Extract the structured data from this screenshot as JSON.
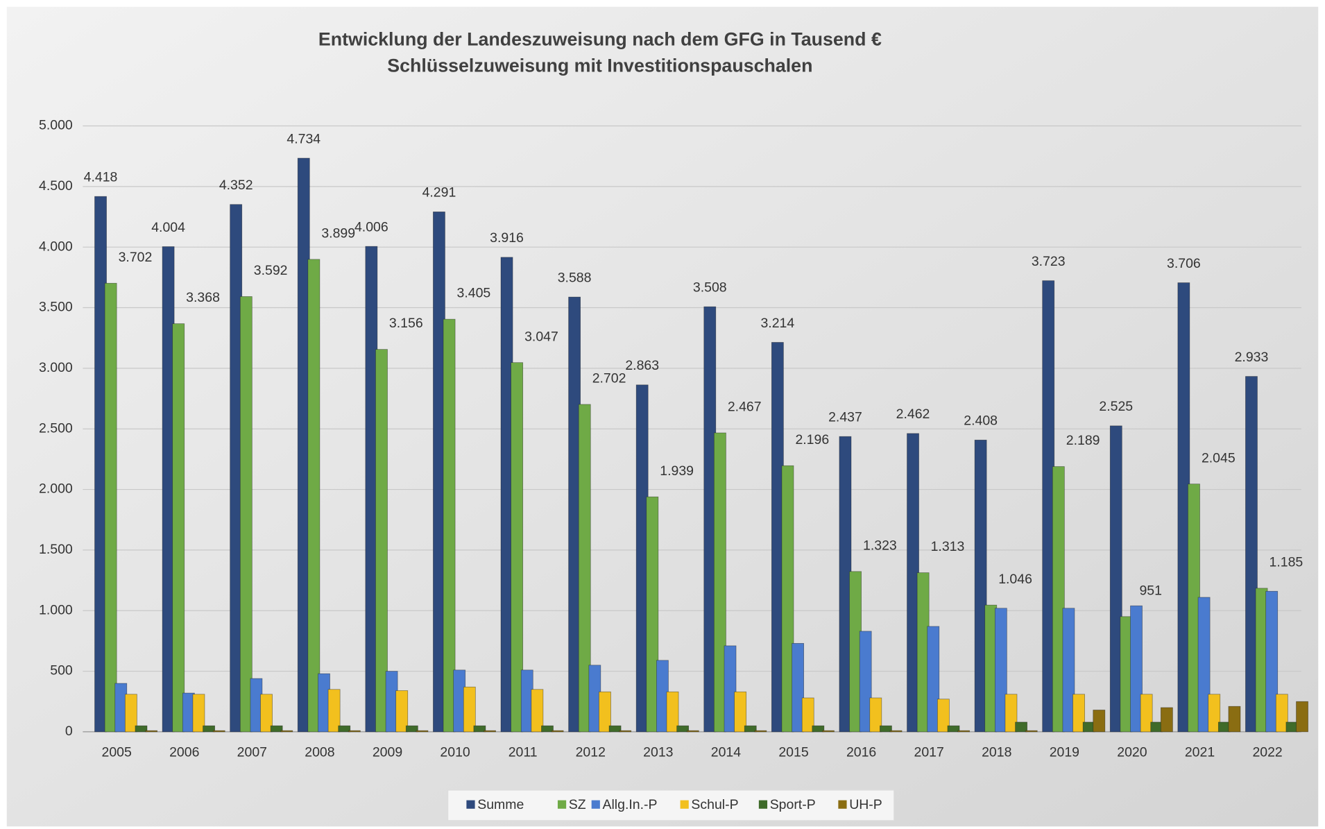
{
  "chart_data": {
    "type": "bar",
    "title": "Entwicklung der Landeszuweisung nach dem GFG in Tausend €",
    "subtitle": "Schlüsselzuweisung mit Investitionspauschalen",
    "categories": [
      "2005",
      "2006",
      "2007",
      "2008",
      "2009",
      "2010",
      "2011",
      "2012",
      "2013",
      "2014",
      "2015",
      "2016",
      "2017",
      "2018",
      "2019",
      "2020",
      "2021",
      "2022"
    ],
    "series": [
      {
        "name": "Summe",
        "color": "#2e4a7d",
        "values": [
          4418,
          4004,
          4352,
          4734,
          4006,
          4291,
          3916,
          3588,
          2863,
          3508,
          3214,
          2437,
          2462,
          2408,
          3723,
          2525,
          3706,
          2933
        ],
        "value_labels": [
          "4.418",
          "4.004",
          "4.352",
          "4.734",
          "4.006",
          "4.291",
          "3.916",
          "3.588",
          "2.863",
          "3.508",
          "3.214",
          "2.437",
          "2.462",
          "2.408",
          "3.723",
          "2.525",
          "3.706",
          "2.933"
        ]
      },
      {
        "name": "SZ",
        "color": "#6faa46",
        "values": [
          3702,
          3368,
          3592,
          3899,
          3156,
          3405,
          3047,
          2702,
          1939,
          2467,
          2196,
          1323,
          1313,
          1046,
          2189,
          951,
          2045,
          1185
        ],
        "value_labels": [
          "3.702",
          "3.368",
          "3.592",
          "3.899",
          "3.156",
          "3.405",
          "3.047",
          "2.702",
          "1.939",
          "2.467",
          "2.196",
          "1.323",
          "1.313",
          "1.046",
          "2.189",
          "951",
          "2.045",
          "1.185"
        ]
      },
      {
        "name": "Allg.In.-P",
        "color": "#4a7bcf",
        "values": [
          400,
          320,
          440,
          480,
          500,
          510,
          510,
          550,
          590,
          710,
          730,
          830,
          870,
          1020,
          1020,
          1040,
          1110,
          1160
        ]
      },
      {
        "name": "Schul-P",
        "color": "#f2c01e",
        "values": [
          310,
          310,
          310,
          350,
          340,
          370,
          350,
          330,
          330,
          330,
          280,
          280,
          270,
          310,
          310,
          310,
          310,
          310
        ]
      },
      {
        "name": "Sport-P",
        "color": "#3f6b2a",
        "values": [
          50,
          50,
          50,
          50,
          50,
          50,
          50,
          50,
          50,
          50,
          50,
          50,
          50,
          80,
          80,
          80,
          80,
          80
        ]
      },
      {
        "name": "UH-P",
        "color": "#8a6d12",
        "values": [
          10,
          10,
          10,
          10,
          10,
          10,
          10,
          10,
          10,
          10,
          10,
          10,
          10,
          10,
          180,
          200,
          210,
          250
        ]
      }
    ],
    "ylim": [
      0,
      5000
    ],
    "yticks": [
      0,
      500,
      {
        "value": 1000,
        "label": "1.000"
      },
      {
        "value": 1500,
        "label": "1.500"
      },
      {
        "value": 2000,
        "label": "2.000"
      },
      {
        "value": 2500,
        "label": "2.500"
      },
      {
        "value": 3000,
        "label": "3.000"
      },
      {
        "value": 3500,
        "label": "3.500"
      },
      {
        "value": 4000,
        "label": "4.000"
      },
      {
        "value": 4500,
        "label": "4.500"
      },
      {
        "value": 5000,
        "label": "5.000"
      }
    ],
    "grid": true
  }
}
